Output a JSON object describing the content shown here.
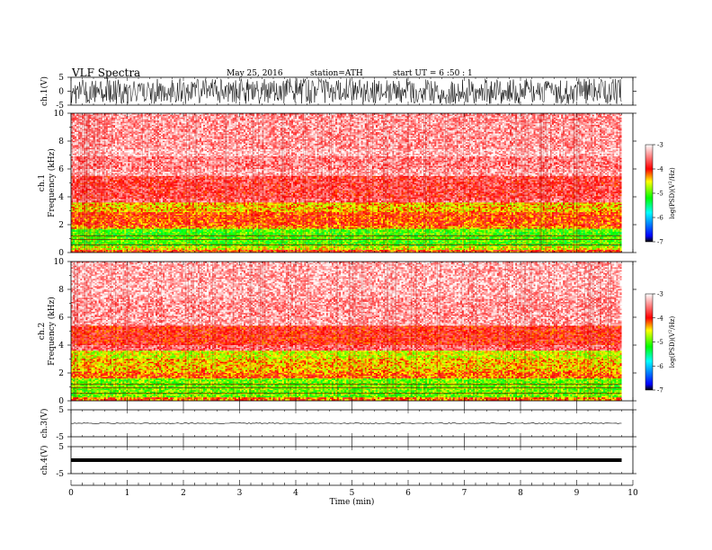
{
  "header": {
    "title": "VLF  Spectra",
    "date": "May 25, 2016",
    "station": "station=ATH",
    "start": "start  UT  =   6  :50 : 1"
  },
  "chart_data": {
    "type": "heatmap",
    "x": {
      "label": "Time  (min)",
      "ticks": [
        "0",
        "1",
        "2",
        "3",
        "4",
        "5",
        "6",
        "7",
        "8",
        "9",
        "10"
      ],
      "range": [
        0,
        10
      ],
      "data_end": 9.8
    },
    "panels": [
      {
        "id": "ch1-wave",
        "type": "line",
        "ylabel": "ch.1(V)",
        "yticks": [
          "5",
          "0",
          "-5"
        ],
        "ylim": [
          -5,
          5
        ],
        "amplitude": 4.6
      },
      {
        "id": "ch1-spec",
        "type": "heatmap",
        "ylabel_top": "ch.1",
        "ylabel": "Frequency  (kHz)",
        "yticks": [
          "0",
          "2",
          "4",
          "6",
          "8",
          "10"
        ],
        "ylim": [
          0,
          10
        ],
        "bands": [
          {
            "f0": 0.0,
            "f1": 0.2,
            "level": -4.1
          },
          {
            "f0": 0.2,
            "f1": 0.45,
            "level": -4.6
          },
          {
            "f0": 0.45,
            "f1": 1.7,
            "level": -5.0
          },
          {
            "f0": 1.7,
            "f1": 1.9,
            "level": -4.3
          },
          {
            "f0": 1.9,
            "f1": 2.9,
            "level": -4.1
          },
          {
            "f0": 2.9,
            "f1": 3.6,
            "level": -4.4
          },
          {
            "f0": 3.6,
            "f1": 3.85,
            "level": -3.6
          },
          {
            "f0": 3.85,
            "f1": 5.5,
            "level": -3.75
          },
          {
            "f0": 5.5,
            "f1": 6.0,
            "level": -3.35
          },
          {
            "f0": 6.0,
            "f1": 6.9,
            "level": -3.5
          },
          {
            "f0": 6.9,
            "f1": 7.4,
            "level": -3.25
          },
          {
            "f0": 7.4,
            "f1": 10.0,
            "level": -3.4
          }
        ]
      },
      {
        "id": "ch2-spec",
        "type": "heatmap",
        "ylabel_top": "ch.2",
        "ylabel": "Frequency  (kHz)",
        "yticks": [
          "0",
          "2",
          "4",
          "6",
          "8",
          "10"
        ],
        "ylim": [
          0,
          10
        ],
        "bands": [
          {
            "f0": 0.0,
            "f1": 0.25,
            "level": -4.2
          },
          {
            "f0": 0.25,
            "f1": 1.6,
            "level": -4.9
          },
          {
            "f0": 1.6,
            "f1": 2.1,
            "level": -4.2
          },
          {
            "f0": 2.1,
            "f1": 3.0,
            "level": -4.4
          },
          {
            "f0": 3.0,
            "f1": 3.6,
            "level": -4.6
          },
          {
            "f0": 3.6,
            "f1": 4.0,
            "level": -3.6
          },
          {
            "f0": 4.0,
            "f1": 5.4,
            "level": -3.9
          },
          {
            "f0": 5.4,
            "f1": 6.0,
            "level": -3.35
          },
          {
            "f0": 6.0,
            "f1": 7.4,
            "level": -3.4
          },
          {
            "f0": 7.4,
            "f1": 10.0,
            "level": -3.3
          }
        ]
      },
      {
        "id": "ch3-wave",
        "type": "line",
        "ylabel": "ch.3(V)",
        "yticks": [
          "5",
          "-5"
        ],
        "ylim": [
          -5,
          5
        ],
        "amplitude": 0.15
      },
      {
        "id": "ch4-wave",
        "type": "line",
        "ylabel": "ch.4(V)",
        "yticks": [
          "5",
          "-5"
        ],
        "ylim": [
          -5,
          5
        ],
        "amplitude": 0.15
      }
    ],
    "colorbar": {
      "label": "log(PSD)(V^2/Hz)",
      "ticks": [
        "-3",
        "-4",
        "-5",
        "-6",
        "-7"
      ],
      "range": [
        -7,
        -3
      ],
      "colors": [
        "#000000",
        "#0000ff",
        "#00ffff",
        "#00ff00",
        "#ffff00",
        "#ff0000",
        "#ffffff"
      ]
    }
  }
}
